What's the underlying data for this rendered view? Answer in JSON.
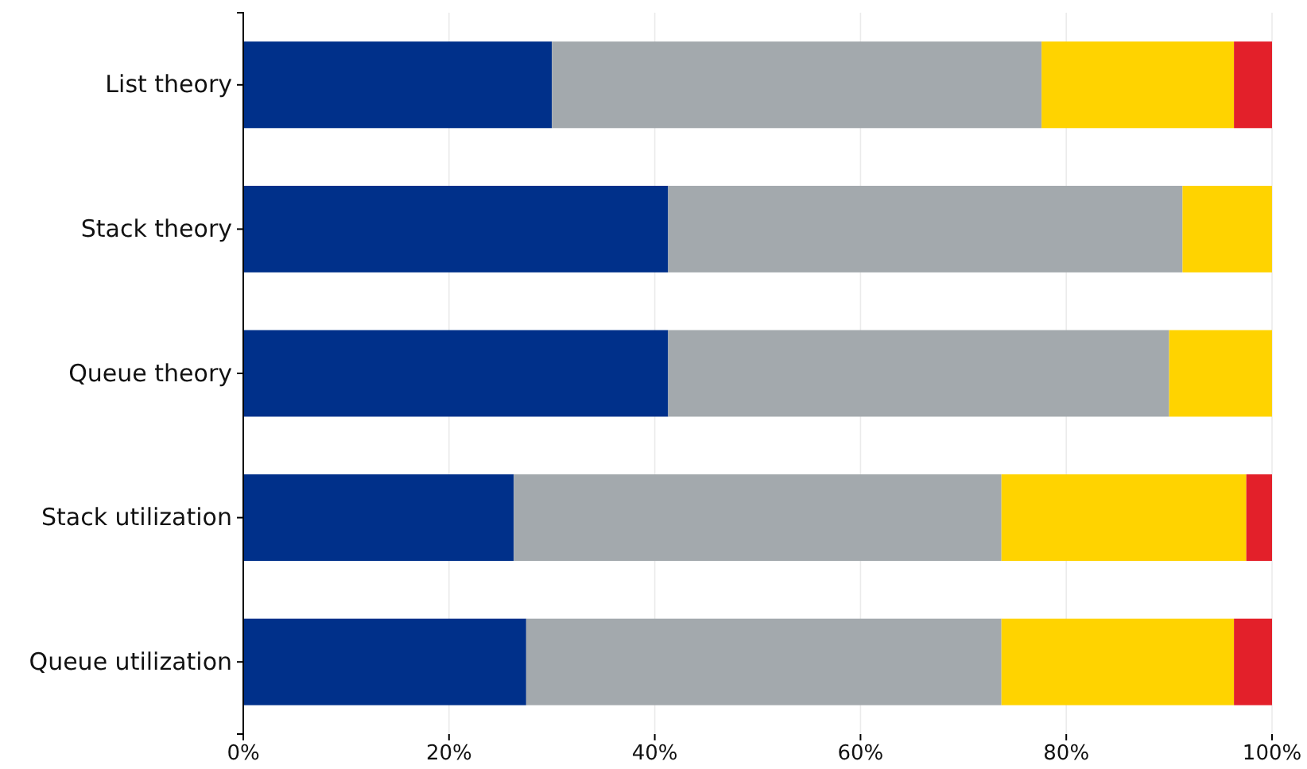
{
  "chart_data": {
    "type": "bar",
    "orientation": "horizontal",
    "stacked": true,
    "categories": [
      "List theory",
      "Stack theory",
      "Queue theory",
      "Stack utilization",
      "Queue utilization"
    ],
    "series": [
      {
        "color": "#00308a",
        "values": [
          30.0,
          41.3,
          41.3,
          26.3,
          27.5
        ]
      },
      {
        "color": "#a3a9ad",
        "values": [
          47.6,
          50.0,
          48.7,
          47.4,
          46.2
        ]
      },
      {
        "color": "#ffd300",
        "values": [
          18.7,
          8.7,
          10.0,
          23.8,
          22.6
        ]
      },
      {
        "color": "#e3202a",
        "values": [
          3.7,
          0,
          0,
          2.5,
          3.7
        ]
      }
    ],
    "xlim": [
      0,
      100
    ],
    "xticks": [
      {
        "value": 0,
        "label": "0%"
      },
      {
        "value": 20,
        "label": "20%"
      },
      {
        "value": 40,
        "label": "40%"
      },
      {
        "value": 60,
        "label": "60%"
      },
      {
        "value": 80,
        "label": "80%"
      },
      {
        "value": 100,
        "label": "100%"
      }
    ],
    "grid": "x"
  }
}
